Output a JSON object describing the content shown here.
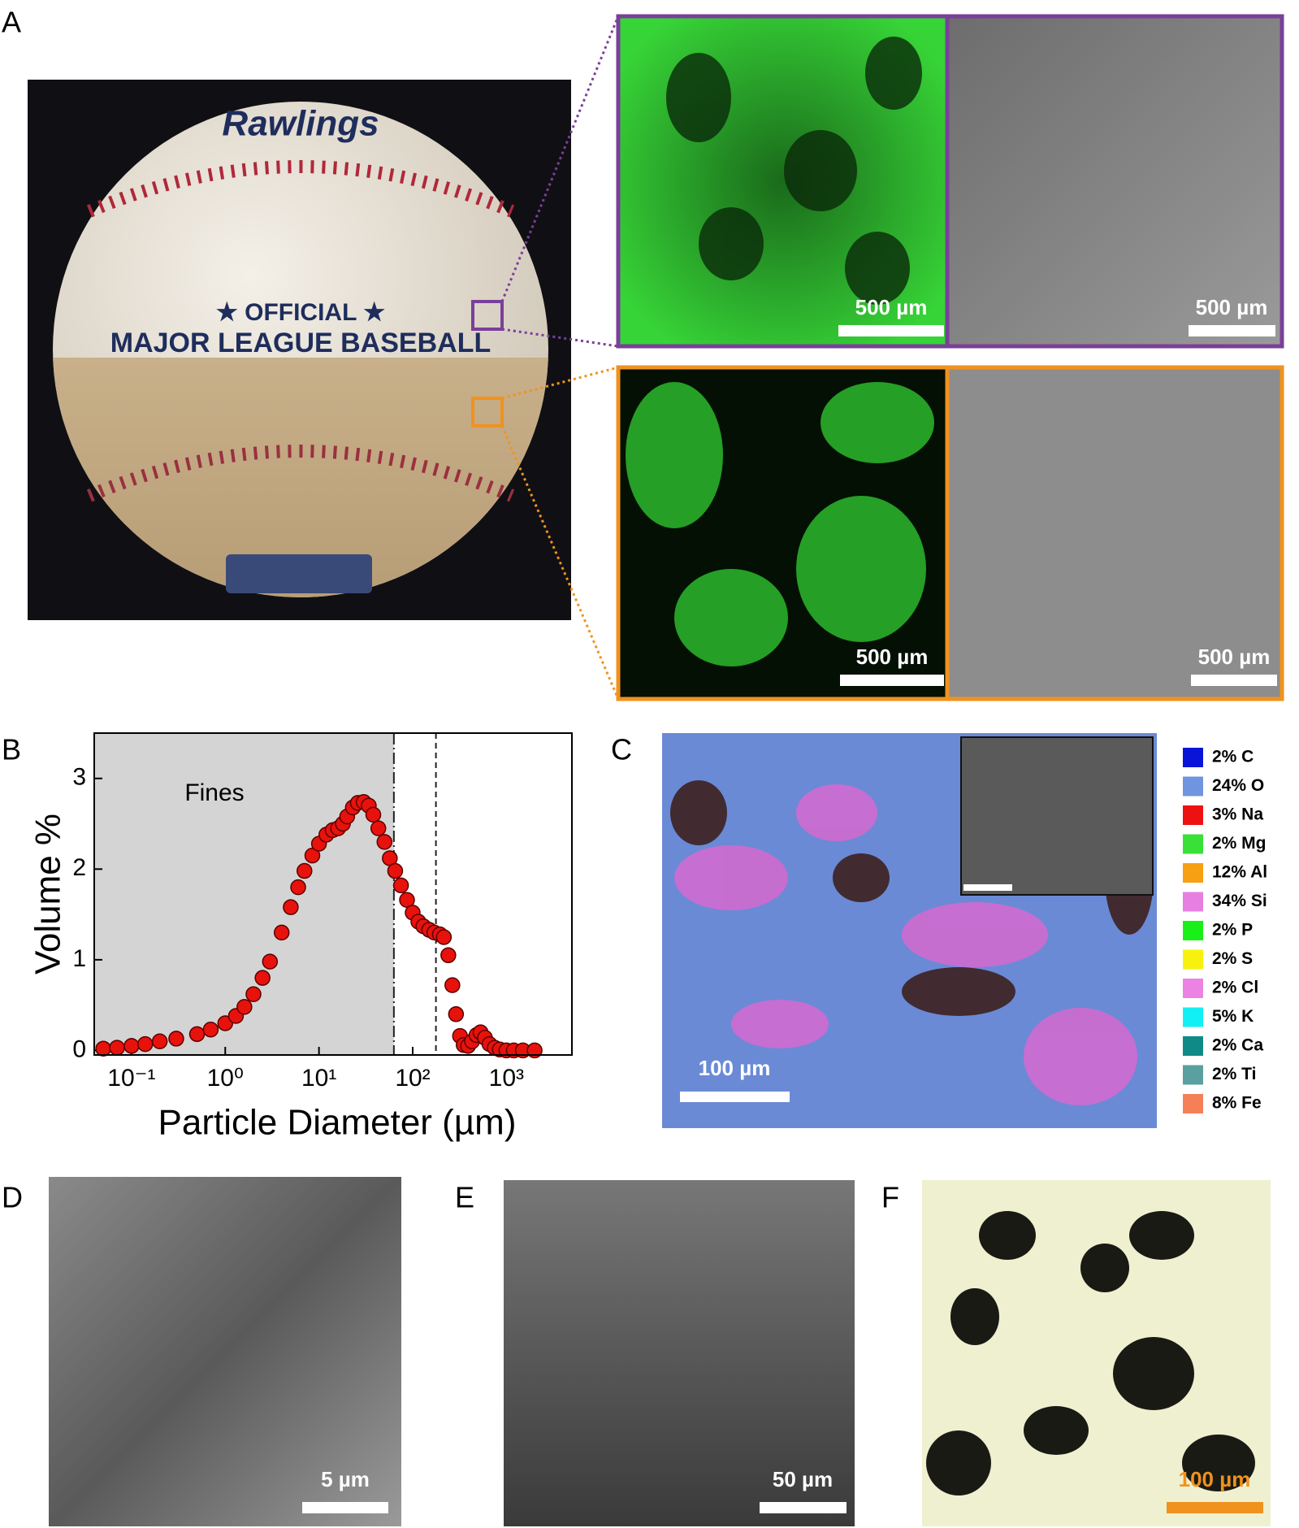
{
  "panel_labels": [
    "A",
    "B",
    "C",
    "D",
    "E",
    "F"
  ],
  "panel_a": {
    "photo_text": [
      "Rawlings",
      "★ OFFICIAL ★",
      "MAJOR LEAGUE BASEBALL"
    ],
    "scale_bars": [
      "500 µm",
      "500 µm",
      "500 µm",
      "500 µm"
    ]
  },
  "chart_data": {
    "type": "scatter",
    "xlabel": "Particle Diameter (µm)",
    "ylabel": "Volume %",
    "annotation": "Fines",
    "log_x": true,
    "color": "#e8120c",
    "x": [
      0.05,
      0.07,
      0.1,
      0.14,
      0.2,
      0.3,
      0.5,
      0.7,
      1,
      1.3,
      1.6,
      2,
      2.5,
      3,
      4,
      5,
      6,
      7,
      8.5,
      10,
      12,
      14,
      16,
      18,
      20,
      23,
      26,
      30,
      34,
      38,
      43,
      50,
      57,
      65,
      75,
      87,
      100,
      115,
      130,
      150,
      170,
      195,
      215,
      240,
      265,
      290,
      320,
      350,
      390,
      430,
      480,
      530,
      590,
      660,
      750,
      850,
      1000,
      1200,
      1500,
      2000
    ],
    "values": [
      0.02,
      0.03,
      0.05,
      0.07,
      0.1,
      0.13,
      0.18,
      0.23,
      0.3,
      0.38,
      0.48,
      0.62,
      0.8,
      0.98,
      1.3,
      1.58,
      1.8,
      1.98,
      2.15,
      2.28,
      2.38,
      2.43,
      2.45,
      2.5,
      2.58,
      2.68,
      2.73,
      2.74,
      2.7,
      2.6,
      2.45,
      2.3,
      2.12,
      1.98,
      1.82,
      1.66,
      1.52,
      1.42,
      1.37,
      1.33,
      1.3,
      1.28,
      1.25,
      1.05,
      0.72,
      0.4,
      0.16,
      0.06,
      0.05,
      0.1,
      0.17,
      0.2,
      0.14,
      0.07,
      0.03,
      0.01,
      0.0,
      0.0,
      0.0,
      0.0
    ],
    "xlim": [
      0.04,
      5000
    ],
    "ylim": [
      -0.05,
      3.5
    ],
    "xticks": [
      {
        "value": 0.1,
        "label": "10⁻¹"
      },
      {
        "value": 1,
        "label": "10⁰"
      },
      {
        "value": 10,
        "label": "10¹"
      },
      {
        "value": 100,
        "label": "10²"
      },
      {
        "value": 1000,
        "label": "10³"
      }
    ],
    "yticks": [
      0,
      1,
      2,
      3
    ],
    "vlines": [
      {
        "value": 63,
        "style": "dashdot"
      },
      {
        "value": 177,
        "style": "dashed"
      }
    ]
  },
  "panel_c": {
    "scale_bar": "100 µm",
    "legend": [
      {
        "label": "2% C",
        "color": "#0a14d8"
      },
      {
        "label": "24% O",
        "color": "#6f95e0"
      },
      {
        "label": "3% Na",
        "color": "#ee1111"
      },
      {
        "label": "2% Mg",
        "color": "#38e038"
      },
      {
        "label": "12% Al",
        "color": "#f7a013"
      },
      {
        "label": "34% Si",
        "color": "#e77fe0"
      },
      {
        "label": "2% P",
        "color": "#18f018"
      },
      {
        "label": "2% S",
        "color": "#f7f10d"
      },
      {
        "label": "2% Cl",
        "color": "#ec82e4"
      },
      {
        "label": "5% K",
        "color": "#10f0f5"
      },
      {
        "label": "2% Ca",
        "color": "#0f8a86"
      },
      {
        "label": "2% Ti",
        "color": "#5aa0a0"
      },
      {
        "label": "8% Fe",
        "color": "#f58058"
      }
    ]
  },
  "panel_d": {
    "scale_bar": "5 µm"
  },
  "panel_e": {
    "scale_bar": "50 µm"
  },
  "panel_f": {
    "scale_bar": "100 µm"
  }
}
